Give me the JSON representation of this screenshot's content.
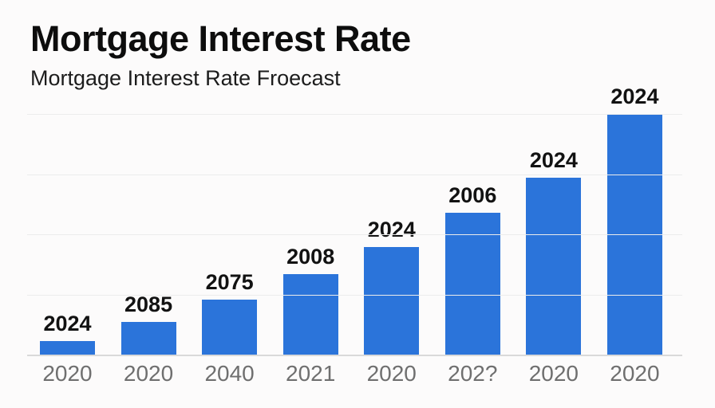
{
  "header": {
    "title": "Mortgage Interest Rate",
    "subtitle": "Mortgage Interest Rate Froecast"
  },
  "chart_data": {
    "type": "bar",
    "title": "Mortgage Interest Rate",
    "subtitle": "Mortgage Interest Rate Froecast",
    "categories": [
      "2020",
      "2020",
      "2040",
      "2021",
      "2020",
      "202?",
      "2020",
      "2020"
    ],
    "bar_value_labels": [
      "2024",
      "2085",
      "2075",
      "2008",
      "2024",
      "2006",
      "2024",
      "2024"
    ],
    "series": [
      {
        "name": "Mortgage Interest Rate Forecast",
        "values_pct_of_tallest": [
          5.6,
          13.6,
          22.8,
          33.4,
          44.7,
          58.9,
          73.5,
          100
        ]
      }
    ],
    "y_axis": {
      "tick_labels_visible": false,
      "gridline_count": 4,
      "grid_on": true
    },
    "legend_position": "none",
    "colors": {
      "bar": "#2b74da",
      "value_label": "#121212",
      "category_label": "#6f6f6f",
      "gridline": "#ececec",
      "baseline": "#d9d9d9",
      "background": "#fcfbfb"
    }
  }
}
